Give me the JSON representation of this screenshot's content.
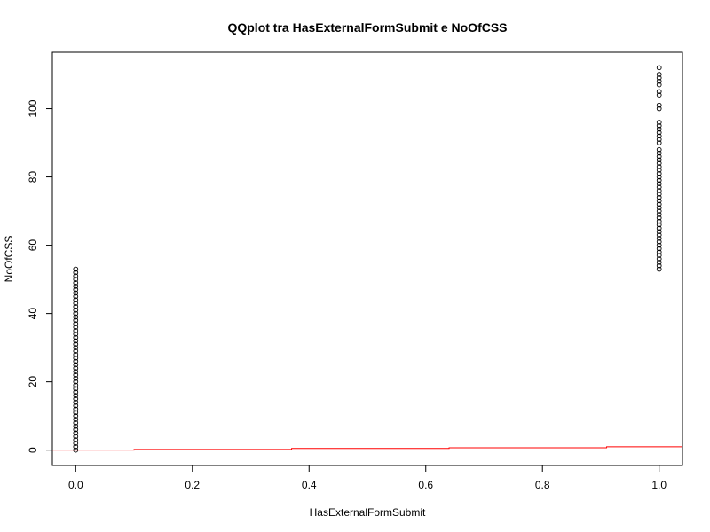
{
  "chart_data": {
    "type": "scatter",
    "title": "QQplot tra HasExternalFormSubmit e NoOfCSS",
    "xlabel": "HasExternalFormSubmit",
    "ylabel": "NoOfCSS",
    "xlim": [
      -0.04,
      1.04
    ],
    "ylim": [
      -4.5,
      116.5
    ],
    "xticks": [
      0.0,
      0.2,
      0.4,
      0.6,
      0.8,
      1.0
    ],
    "xtick_labels": [
      "0.0",
      "0.2",
      "0.4",
      "0.6",
      "0.8",
      "1.0"
    ],
    "yticks": [
      0,
      20,
      40,
      60,
      80,
      100
    ],
    "ytick_labels": [
      "0",
      "20",
      "40",
      "60",
      "80",
      "100"
    ],
    "grid": false,
    "series": [
      {
        "color": "#000000",
        "marker": "open-circle",
        "points": [
          [
            0,
            0
          ],
          [
            0,
            1
          ],
          [
            0,
            2
          ],
          [
            0,
            3
          ],
          [
            0,
            4
          ],
          [
            0,
            5
          ],
          [
            0,
            6
          ],
          [
            0,
            7
          ],
          [
            0,
            8
          ],
          [
            0,
            9
          ],
          [
            0,
            10
          ],
          [
            0,
            11
          ],
          [
            0,
            12
          ],
          [
            0,
            13
          ],
          [
            0,
            14
          ],
          [
            0,
            15
          ],
          [
            0,
            16
          ],
          [
            0,
            17
          ],
          [
            0,
            18
          ],
          [
            0,
            19
          ],
          [
            0,
            20
          ],
          [
            0,
            21
          ],
          [
            0,
            22
          ],
          [
            0,
            23
          ],
          [
            0,
            24
          ],
          [
            0,
            25
          ],
          [
            0,
            26
          ],
          [
            0,
            27
          ],
          [
            0,
            28
          ],
          [
            0,
            29
          ],
          [
            0,
            30
          ],
          [
            0,
            31
          ],
          [
            0,
            32
          ],
          [
            0,
            33
          ],
          [
            0,
            34
          ],
          [
            0,
            35
          ],
          [
            0,
            36
          ],
          [
            0,
            37
          ],
          [
            0,
            38
          ],
          [
            0,
            39
          ],
          [
            0,
            40
          ],
          [
            0,
            41
          ],
          [
            0,
            42
          ],
          [
            0,
            43
          ],
          [
            0,
            44
          ],
          [
            0,
            45
          ],
          [
            0,
            46
          ],
          [
            0,
            47
          ],
          [
            0,
            48
          ],
          [
            0,
            49
          ],
          [
            0,
            50
          ],
          [
            0,
            51
          ],
          [
            0,
            52
          ],
          [
            0,
            53
          ],
          [
            1,
            53
          ],
          [
            1,
            54
          ],
          [
            1,
            55
          ],
          [
            1,
            56
          ],
          [
            1,
            57
          ],
          [
            1,
            58
          ],
          [
            1,
            59
          ],
          [
            1,
            60
          ],
          [
            1,
            61
          ],
          [
            1,
            62
          ],
          [
            1,
            63
          ],
          [
            1,
            64
          ],
          [
            1,
            65
          ],
          [
            1,
            66
          ],
          [
            1,
            67
          ],
          [
            1,
            68
          ],
          [
            1,
            69
          ],
          [
            1,
            70
          ],
          [
            1,
            71
          ],
          [
            1,
            72
          ],
          [
            1,
            73
          ],
          [
            1,
            74
          ],
          [
            1,
            75
          ],
          [
            1,
            76
          ],
          [
            1,
            77
          ],
          [
            1,
            78
          ],
          [
            1,
            79
          ],
          [
            1,
            80
          ],
          [
            1,
            81
          ],
          [
            1,
            82
          ],
          [
            1,
            83
          ],
          [
            1,
            84
          ],
          [
            1,
            85
          ],
          [
            1,
            86
          ],
          [
            1,
            87
          ],
          [
            1,
            88
          ],
          [
            1,
            90
          ],
          [
            1,
            91
          ],
          [
            1,
            92
          ],
          [
            1,
            93
          ],
          [
            1,
            94
          ],
          [
            1,
            95
          ],
          [
            1,
            96
          ],
          [
            1,
            100
          ],
          [
            1,
            101
          ],
          [
            1,
            104
          ],
          [
            1,
            105
          ],
          [
            1,
            107
          ],
          [
            1,
            108
          ],
          [
            1,
            109
          ],
          [
            1,
            110
          ],
          [
            1,
            112
          ]
        ]
      },
      {
        "color": "#ff0000",
        "style": "step-line",
        "points": [
          [
            -0.04,
            0
          ],
          [
            0.1,
            0
          ],
          [
            0.1,
            0.2
          ],
          [
            0.37,
            0.2
          ],
          [
            0.37,
            0.5
          ],
          [
            0.64,
            0.5
          ],
          [
            0.64,
            0.7
          ],
          [
            0.91,
            0.7
          ],
          [
            0.91,
            1
          ],
          [
            1.04,
            1
          ]
        ]
      }
    ]
  }
}
